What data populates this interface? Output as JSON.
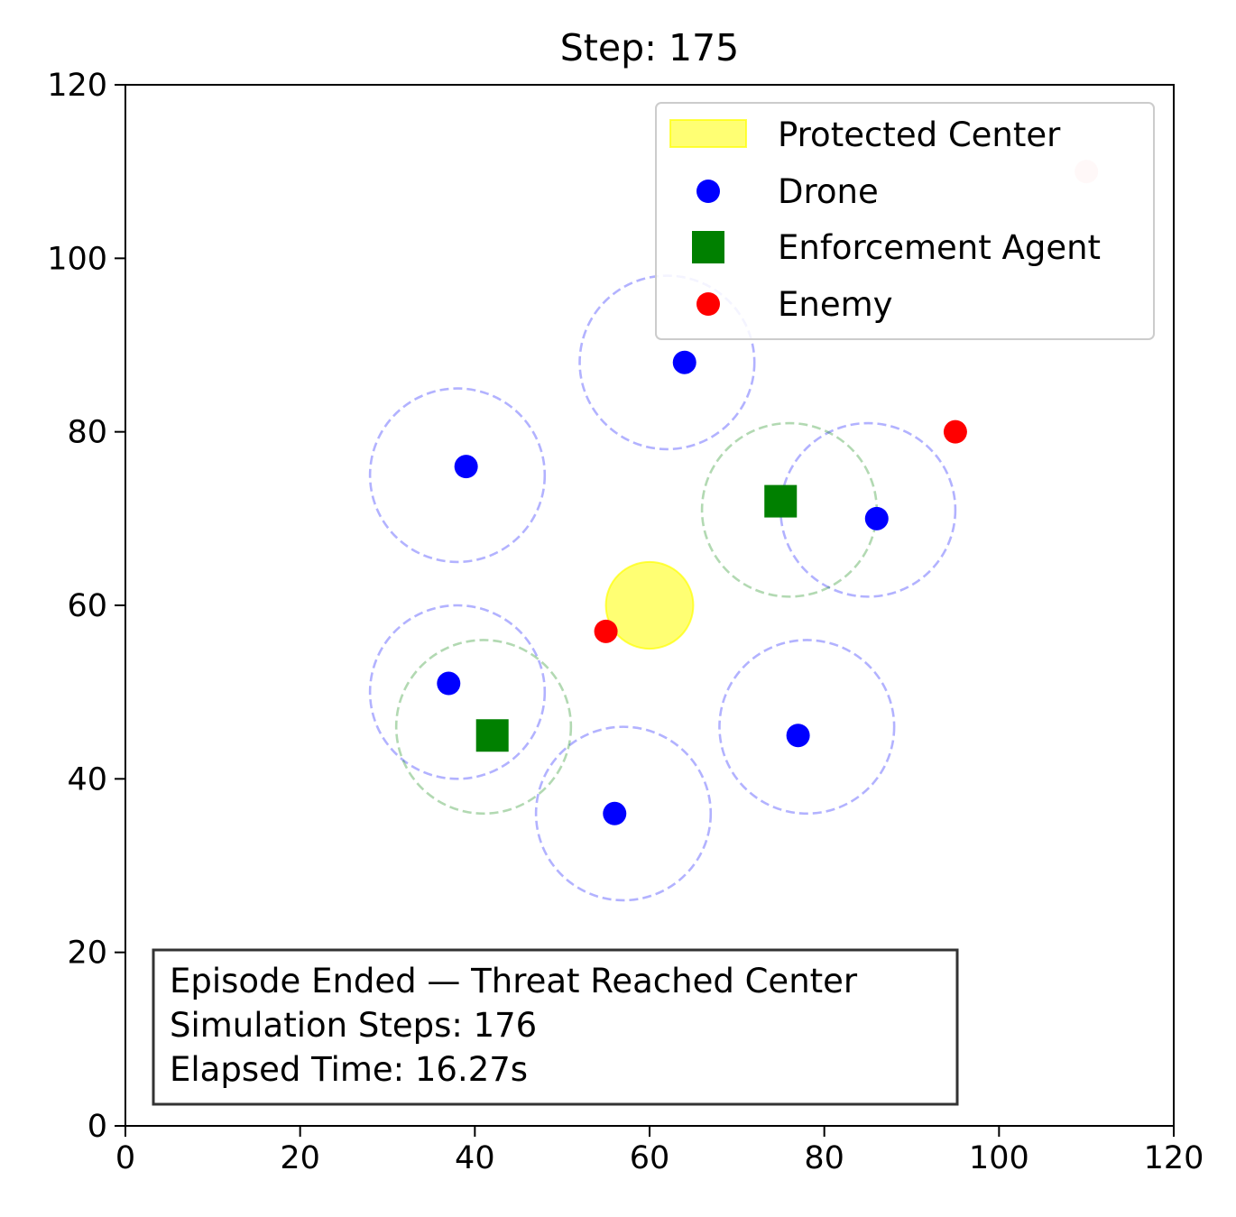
{
  "chart_data": {
    "type": "scatter",
    "title": "Step: 175",
    "xlabel": "",
    "ylabel": "",
    "xlim": [
      0,
      120
    ],
    "ylim": [
      0,
      120
    ],
    "xticks": [
      0,
      20,
      40,
      60,
      80,
      100,
      120
    ],
    "yticks": [
      0,
      20,
      40,
      60,
      80,
      100,
      120
    ],
    "grid": false,
    "legend_position": "top-right",
    "legend": [
      {
        "label": "Protected Center",
        "marker": "patch",
        "color": "#ffff00"
      },
      {
        "label": "Drone",
        "marker": "circle",
        "color": "#0000ff"
      },
      {
        "label": "Enforcement Agent",
        "marker": "square",
        "color": "#008000"
      },
      {
        "label": "Enemy",
        "marker": "circle",
        "color": "#ff0000"
      }
    ],
    "protected_center": {
      "x": 60,
      "y": 60,
      "radius": 5,
      "color": "#ffff00"
    },
    "drones": [
      {
        "x": 64,
        "y": 88,
        "zone": {
          "x": 62,
          "y": 88,
          "radius": 10
        }
      },
      {
        "x": 39,
        "y": 76,
        "zone": {
          "x": 38,
          "y": 75,
          "radius": 10
        }
      },
      {
        "x": 86,
        "y": 70,
        "zone": {
          "x": 85,
          "y": 71,
          "radius": 10
        }
      },
      {
        "x": 37,
        "y": 51,
        "zone": {
          "x": 38,
          "y": 50,
          "radius": 10
        }
      },
      {
        "x": 77,
        "y": 45,
        "zone": {
          "x": 78,
          "y": 46,
          "radius": 10
        }
      },
      {
        "x": 56,
        "y": 36,
        "zone": {
          "x": 57,
          "y": 36,
          "radius": 10
        }
      }
    ],
    "agents": [
      {
        "x": 75,
        "y": 72,
        "zone": {
          "x": 76,
          "y": 71,
          "radius": 10
        }
      },
      {
        "x": 42,
        "y": 45,
        "zone": {
          "x": 41,
          "y": 46,
          "radius": 10
        }
      }
    ],
    "enemies": [
      {
        "x": 95,
        "y": 80,
        "faded": false
      },
      {
        "x": 55,
        "y": 57,
        "faded": false
      },
      {
        "x": 110,
        "y": 110,
        "faded": true
      }
    ],
    "colors": {
      "drone": "#0000ff",
      "agent": "#008000",
      "enemy": "#ff0000",
      "enemy_faded": "#ffcccc",
      "center": "#ffff00"
    },
    "info_box": [
      "Episode Ended — Threat Reached Center",
      "Simulation Steps: 176",
      "Elapsed Time: 16.27s"
    ]
  }
}
